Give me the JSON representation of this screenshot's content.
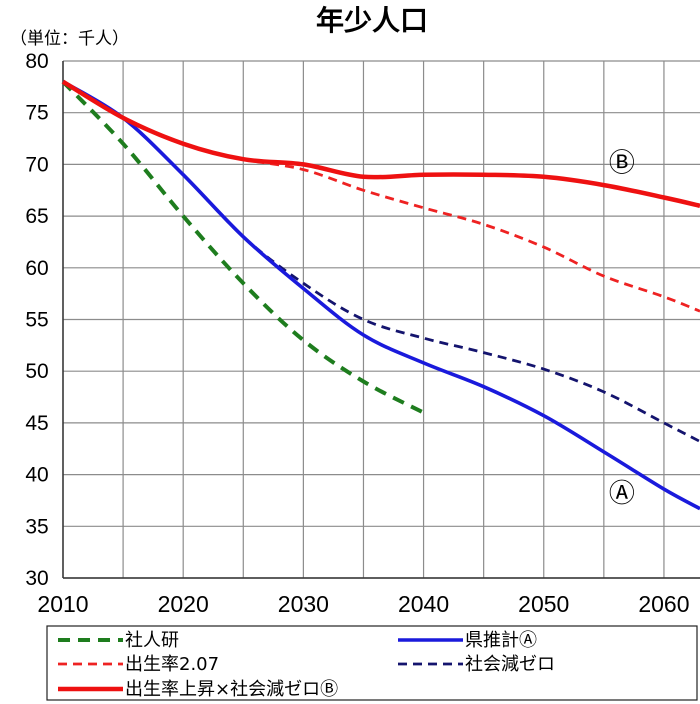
{
  "chart_data": {
    "type": "line",
    "title": "年少人口",
    "unit_label": "（単位：千人）",
    "xlim": [
      2010,
      2063
    ],
    "ylim": [
      30,
      80
    ],
    "x_ticks": [
      2010,
      2020,
      2030,
      2040,
      2050,
      2060
    ],
    "y_ticks": [
      30,
      35,
      40,
      45,
      50,
      55,
      60,
      65,
      70,
      75,
      80
    ],
    "grid": true,
    "legend_position": "bottom",
    "series": [
      {
        "name": "社人研",
        "color": "#1e7d1e",
        "style": "dashed-thick",
        "x": [
          2010,
          2015,
          2020,
          2025,
          2030,
          2035,
          2040
        ],
        "values": [
          78.0,
          72.0,
          65.0,
          58.5,
          53.0,
          49.0,
          46.0
        ]
      },
      {
        "name": "県推計Ⓐ",
        "color": "#1a1adc",
        "style": "solid",
        "x": [
          2010,
          2015,
          2020,
          2025,
          2030,
          2035,
          2040,
          2045,
          2050,
          2055,
          2060,
          2063
        ],
        "values": [
          78.0,
          74.5,
          69.0,
          63.0,
          58.0,
          53.5,
          50.8,
          48.5,
          45.7,
          42.2,
          38.6,
          36.7
        ]
      },
      {
        "name": "出生率2.07",
        "color": "#ee2222",
        "style": "dashed",
        "x": [
          2010,
          2015,
          2020,
          2025,
          2030,
          2035,
          2040,
          2045,
          2050,
          2055,
          2060,
          2063
        ],
        "values": [
          78.0,
          74.5,
          72.0,
          70.5,
          69.5,
          67.5,
          65.8,
          64.2,
          62.0,
          59.2,
          57.2,
          55.8
        ]
      },
      {
        "name": "社会減ゼロ",
        "color": "#14146e",
        "style": "dashed",
        "x": [
          2010,
          2015,
          2020,
          2025,
          2030,
          2035,
          2040,
          2045,
          2050,
          2055,
          2060,
          2063
        ],
        "values": [
          78.0,
          74.5,
          69.0,
          63.0,
          58.5,
          55.0,
          53.2,
          51.8,
          50.2,
          48.0,
          45.0,
          43.2
        ]
      },
      {
        "name": "出生率上昇×社会減ゼロⒷ",
        "color": "#ee1111",
        "style": "solid-thick",
        "x": [
          2010,
          2015,
          2020,
          2025,
          2030,
          2035,
          2040,
          2045,
          2050,
          2055,
          2060,
          2063
        ],
        "values": [
          78.0,
          74.5,
          72.0,
          70.5,
          70.0,
          68.8,
          69.0,
          69.0,
          68.8,
          68.0,
          66.8,
          66.0
        ]
      }
    ],
    "annotations": [
      {
        "text": "Ⓑ",
        "x": 2056.5,
        "y": 70.2
      },
      {
        "text": "Ⓐ",
        "x": 2056.5,
        "y": 38.2
      }
    ]
  }
}
